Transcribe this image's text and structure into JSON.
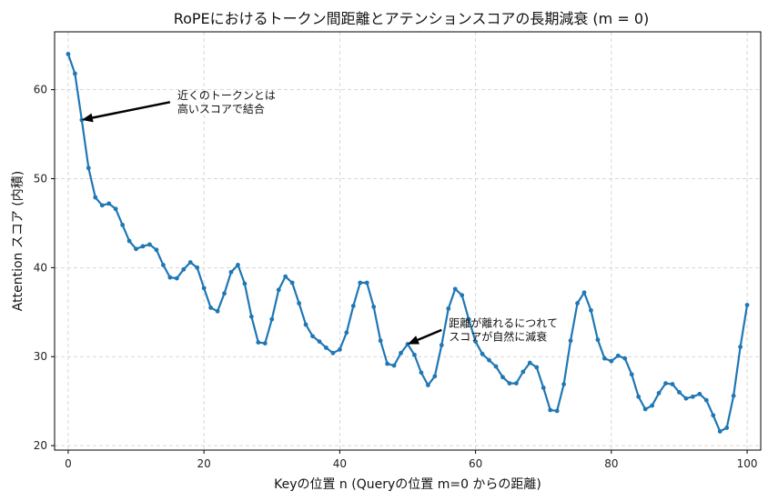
{
  "chart_data": {
    "type": "line",
    "title": "RoPEにおけるトークン間距離とアテンションスコアの長期減衰 (m = 0)",
    "xlabel": "Keyの位置 n (Queryの位置 m=0 からの距離)",
    "ylabel": "Attention スコア (内積)",
    "xlim": [
      -2,
      102
    ],
    "ylim": [
      19.5,
      66.5
    ],
    "xticks": [
      0,
      20,
      40,
      60,
      80,
      100
    ],
    "yticks": [
      20,
      30,
      40,
      50,
      60
    ],
    "grid": true,
    "colors": {
      "series": "#1f77b4",
      "grid": "#cccccc",
      "arrow": "#000000"
    },
    "x": [
      0,
      1,
      2,
      3,
      4,
      5,
      6,
      7,
      8,
      9,
      10,
      11,
      12,
      13,
      14,
      15,
      16,
      17,
      18,
      19,
      20,
      21,
      22,
      23,
      24,
      25,
      26,
      27,
      28,
      29,
      30,
      31,
      32,
      33,
      34,
      35,
      36,
      37,
      38,
      39,
      40,
      41,
      42,
      43,
      44,
      45,
      46,
      47,
      48,
      49,
      50,
      51,
      52,
      53,
      54,
      55,
      56,
      57,
      58,
      59,
      60,
      61,
      62,
      63,
      64,
      65,
      66,
      67,
      68,
      69,
      70,
      71,
      72,
      73,
      74,
      75,
      76,
      77,
      78,
      79,
      80,
      81,
      82,
      83,
      84,
      85,
      86,
      87,
      88,
      89,
      90,
      91,
      92,
      93,
      94,
      95,
      96,
      97,
      98,
      99,
      100
    ],
    "y": [
      64.0,
      61.8,
      56.6,
      51.2,
      47.9,
      47.0,
      47.2,
      46.6,
      44.8,
      43.0,
      42.1,
      42.4,
      42.6,
      42.0,
      40.3,
      38.9,
      38.8,
      39.8,
      40.6,
      40.0,
      37.7,
      35.5,
      35.1,
      37.1,
      39.5,
      40.3,
      38.2,
      34.5,
      31.6,
      31.5,
      34.2,
      37.5,
      39.0,
      38.3,
      36.0,
      33.6,
      32.3,
      31.7,
      31.0,
      30.4,
      30.8,
      32.7,
      35.7,
      38.3,
      38.3,
      35.6,
      31.8,
      29.2,
      29.0,
      30.4,
      31.4,
      30.2,
      28.2,
      26.8,
      27.8,
      31.3,
      35.4,
      37.6,
      36.9,
      34.2,
      31.7,
      30.3,
      29.6,
      28.9,
      27.7,
      27.0,
      27.0,
      28.3,
      29.3,
      28.8,
      26.5,
      24.0,
      23.9,
      26.9,
      31.8,
      36.0,
      37.2,
      35.2,
      31.9,
      29.8,
      29.5,
      30.1,
      29.8,
      28.0,
      25.5,
      24.1,
      24.5,
      25.9,
      27.0,
      26.9,
      26.0,
      25.3,
      25.5,
      25.8,
      25.1,
      23.4,
      21.6,
      22.0,
      25.6,
      31.1,
      35.8
    ],
    "annotations": [
      {
        "text_lines": [
          "近くのトークンとは",
          "高いスコアで結合"
        ],
        "point": [
          2,
          56.6
        ],
        "text_at": [
          15,
          58.6
        ]
      },
      {
        "text_lines": [
          "距離が離れるにつれて",
          "スコアが自然に減衰"
        ],
        "point": [
          50,
          31.4
        ],
        "text_at": [
          55,
          33.0
        ]
      }
    ]
  }
}
